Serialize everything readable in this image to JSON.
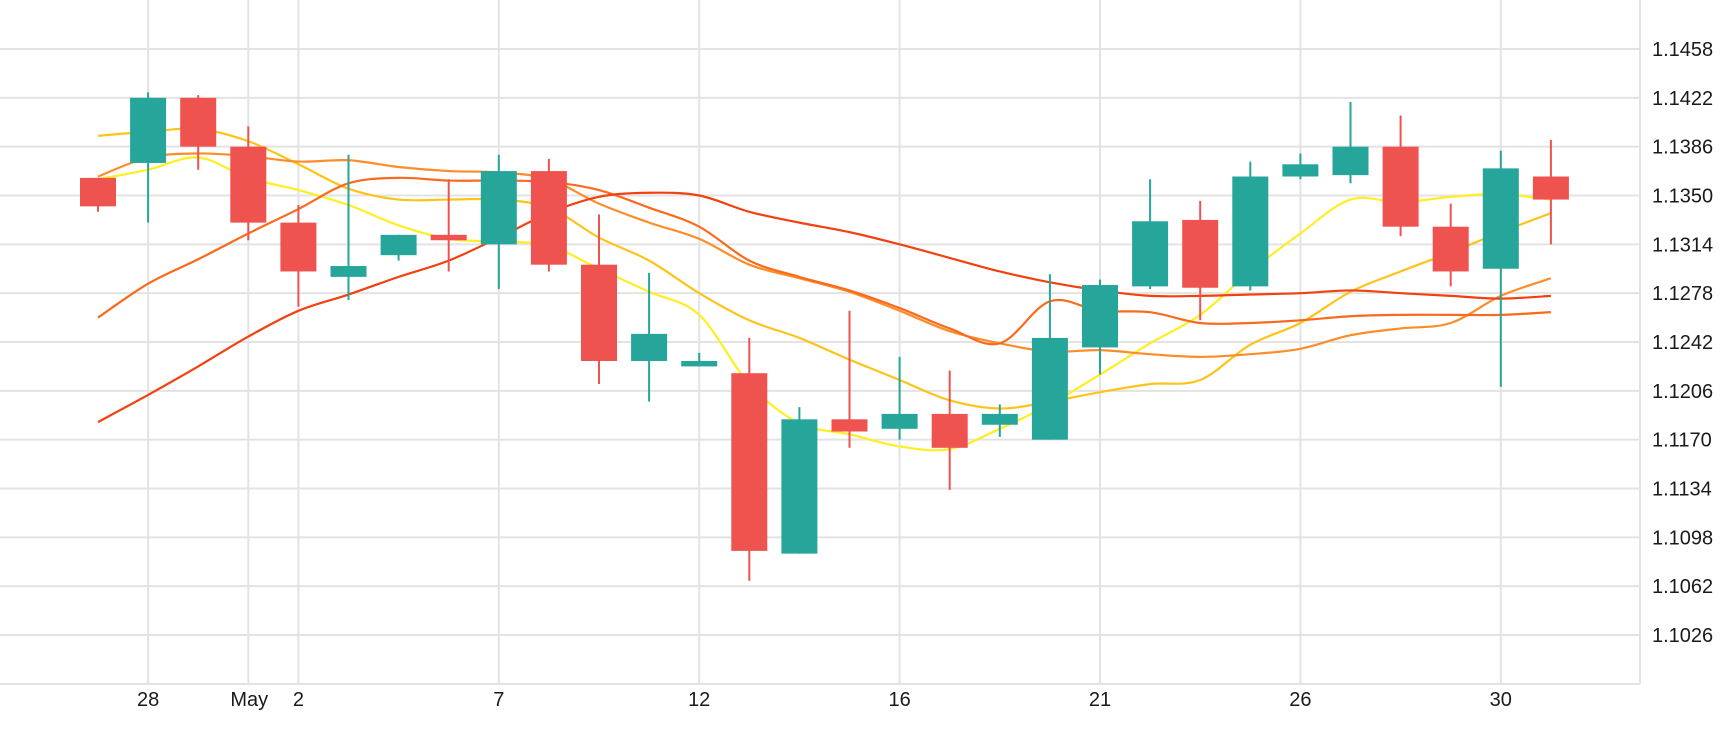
{
  "chart_data": {
    "type": "candlestick",
    "title": "",
    "xlabel": "",
    "ylabel": "",
    "grid": true,
    "ylim": [
      1.099,
      1.1495
    ],
    "y_ticks": [
      "1.1458",
      "1.1422",
      "1.1386",
      "1.1350",
      "1.1314",
      "1.1278",
      "1.1242",
      "1.1206",
      "1.1170",
      "1.1134",
      "1.1098",
      "1.1062",
      "1.1026"
    ],
    "x_ticks": [
      {
        "label": "28",
        "index": 1
      },
      {
        "label": "May",
        "index": 3
      },
      {
        "label": "2",
        "index": 4
      },
      {
        "label": "7",
        "index": 8
      },
      {
        "label": "12",
        "index": 12
      },
      {
        "label": "16",
        "index": 16
      },
      {
        "label": "21",
        "index": 20
      },
      {
        "label": "26",
        "index": 24
      },
      {
        "label": "30",
        "index": 28
      }
    ],
    "x_vertical_grid_indices": [
      1,
      3,
      4,
      8,
      12,
      16,
      20,
      24,
      28
    ],
    "colors": {
      "up": "#26a69a",
      "down": "#ef5350"
    },
    "candles": [
      {
        "open": 1.1363,
        "high": 1.1363,
        "low": 1.1338,
        "close": 1.1342
      },
      {
        "open": 1.1374,
        "high": 1.1426,
        "low": 1.133,
        "close": 1.1422
      },
      {
        "open": 1.1422,
        "high": 1.1424,
        "low": 1.1369,
        "close": 1.1386
      },
      {
        "open": 1.1386,
        "high": 1.1401,
        "low": 1.1317,
        "close": 1.133
      },
      {
        "open": 1.133,
        "high": 1.1343,
        "low": 1.1268,
        "close": 1.1294
      },
      {
        "open": 1.129,
        "high": 1.138,
        "low": 1.1273,
        "close": 1.1298
      },
      {
        "open": 1.1306,
        "high": 1.1321,
        "low": 1.1302,
        "close": 1.1321
      },
      {
        "open": 1.1321,
        "high": 1.1362,
        "low": 1.1294,
        "close": 1.1317
      },
      {
        "open": 1.1314,
        "high": 1.138,
        "low": 1.1281,
        "close": 1.1368
      },
      {
        "open": 1.1368,
        "high": 1.1377,
        "low": 1.1294,
        "close": 1.1299
      },
      {
        "open": 1.1299,
        "high": 1.1336,
        "low": 1.1211,
        "close": 1.1228
      },
      {
        "open": 1.1228,
        "high": 1.1293,
        "low": 1.1198,
        "close": 1.1248
      },
      {
        "open": 1.1224,
        "high": 1.1234,
        "low": 1.1224,
        "close": 1.1228
      },
      {
        "open": 1.1219,
        "high": 1.1245,
        "low": 1.1066,
        "close": 1.1088
      },
      {
        "open": 1.1086,
        "high": 1.1194,
        "low": 1.1086,
        "close": 1.1185
      },
      {
        "open": 1.1185,
        "high": 1.1265,
        "low": 1.1164,
        "close": 1.1176
      },
      {
        "open": 1.1178,
        "high": 1.1231,
        "low": 1.117,
        "close": 1.1189
      },
      {
        "open": 1.1189,
        "high": 1.1221,
        "low": 1.1133,
        "close": 1.1164
      },
      {
        "open": 1.1181,
        "high": 1.1196,
        "low": 1.1172,
        "close": 1.1189
      },
      {
        "open": 1.117,
        "high": 1.1292,
        "low": 1.117,
        "close": 1.1245
      },
      {
        "open": 1.1238,
        "high": 1.1288,
        "low": 1.1218,
        "close": 1.1284
      },
      {
        "open": 1.1283,
        "high": 1.1362,
        "low": 1.1281,
        "close": 1.1331
      },
      {
        "open": 1.1332,
        "high": 1.1346,
        "low": 1.1258,
        "close": 1.1282
      },
      {
        "open": 1.1283,
        "high": 1.1375,
        "low": 1.128,
        "close": 1.1364
      },
      {
        "open": 1.1364,
        "high": 1.1381,
        "low": 1.1362,
        "close": 1.1373
      },
      {
        "open": 1.1365,
        "high": 1.1419,
        "low": 1.1359,
        "close": 1.1386
      },
      {
        "open": 1.1386,
        "high": 1.1409,
        "low": 1.132,
        "close": 1.1327
      },
      {
        "open": 1.1327,
        "high": 1.1344,
        "low": 1.1283,
        "close": 1.1294
      },
      {
        "open": 1.1296,
        "high": 1.1383,
        "low": 1.1209,
        "close": 1.137
      },
      {
        "open": 1.1364,
        "high": 1.1391,
        "low": 1.1314,
        "close": 1.1347
      }
    ],
    "series": [
      {
        "color": "#ffee22",
        "values": [
          [
            0,
            1.1362
          ],
          [
            1,
            1.1369
          ],
          [
            2,
            1.1378
          ],
          [
            3,
            1.1363
          ],
          [
            4,
            1.1354
          ],
          [
            5,
            1.1343
          ],
          [
            6,
            1.1328
          ],
          [
            7,
            1.1318
          ],
          [
            8,
            1.1316
          ],
          [
            9,
            1.1313
          ],
          [
            10,
            1.1296
          ],
          [
            11,
            1.1279
          ],
          [
            12,
            1.1262
          ],
          [
            13,
            1.1211
          ],
          [
            14,
            1.1182
          ],
          [
            15,
            1.1174
          ],
          [
            16,
            1.1165
          ],
          [
            17,
            1.1163
          ],
          [
            18,
            1.1178
          ],
          [
            19,
            1.1196
          ],
          [
            20,
            1.1218
          ],
          [
            21,
            1.1241
          ],
          [
            22,
            1.1262
          ],
          [
            23,
            1.1294
          ],
          [
            24,
            1.1322
          ],
          [
            25,
            1.1347
          ],
          [
            26,
            1.1345
          ],
          [
            27,
            1.1349
          ],
          [
            28,
            1.1351
          ],
          [
            29,
            1.1347
          ]
        ]
      },
      {
        "color": "#fcc419",
        "values": [
          [
            0,
            1.1394
          ],
          [
            1,
            1.1397
          ],
          [
            2,
            1.1399
          ],
          [
            3,
            1.139
          ],
          [
            4,
            1.1373
          ],
          [
            5,
            1.1355
          ],
          [
            6,
            1.1347
          ],
          [
            7,
            1.1347
          ],
          [
            8,
            1.1347
          ],
          [
            9,
            1.1341
          ],
          [
            10,
            1.1319
          ],
          [
            11,
            1.1302
          ],
          [
            12,
            1.1278
          ],
          [
            13,
            1.1258
          ],
          [
            14,
            1.1245
          ],
          [
            15,
            1.1229
          ],
          [
            16,
            1.1214
          ],
          [
            17,
            1.1199
          ],
          [
            18,
            1.1193
          ],
          [
            19,
            1.1198
          ],
          [
            20,
            1.1205
          ],
          [
            21,
            1.1211
          ],
          [
            22,
            1.1214
          ],
          [
            23,
            1.124
          ],
          [
            24,
            1.1256
          ],
          [
            25,
            1.1279
          ],
          [
            26,
            1.1294
          ],
          [
            27,
            1.1308
          ],
          [
            28,
            1.1323
          ],
          [
            29,
            1.1337
          ]
        ]
      },
      {
        "color": "#fd8c2a",
        "values": [
          [
            0,
            1.1364
          ],
          [
            1,
            1.1378
          ],
          [
            2,
            1.1381
          ],
          [
            3,
            1.1379
          ],
          [
            4,
            1.1375
          ],
          [
            5,
            1.1376
          ],
          [
            6,
            1.1371
          ],
          [
            7,
            1.1368
          ],
          [
            8,
            1.1367
          ],
          [
            9,
            1.1362
          ],
          [
            10,
            1.1344
          ],
          [
            11,
            1.133
          ],
          [
            12,
            1.1318
          ],
          [
            13,
            1.1299
          ],
          [
            14,
            1.1289
          ],
          [
            15,
            1.1279
          ],
          [
            16,
            1.1265
          ],
          [
            17,
            1.125
          ],
          [
            18,
            1.1241
          ],
          [
            19,
            1.1235
          ],
          [
            20,
            1.1236
          ],
          [
            21,
            1.1233
          ],
          [
            22,
            1.1231
          ],
          [
            23,
            1.1233
          ],
          [
            24,
            1.1237
          ],
          [
            25,
            1.1247
          ],
          [
            26,
            1.1252
          ],
          [
            27,
            1.1256
          ],
          [
            28,
            1.1276
          ],
          [
            29,
            1.1289
          ]
        ]
      },
      {
        "color": "#fa6a1c",
        "values": [
          [
            0,
            1.126
          ],
          [
            1,
            1.1285
          ],
          [
            2,
            1.1303
          ],
          [
            3,
            1.1322
          ],
          [
            4,
            1.134
          ],
          [
            5,
            1.1359
          ],
          [
            6,
            1.1363
          ],
          [
            7,
            1.1361
          ],
          [
            8,
            1.1361
          ],
          [
            9,
            1.136
          ],
          [
            10,
            1.1354
          ],
          [
            11,
            1.1341
          ],
          [
            12,
            1.1327
          ],
          [
            13,
            1.1302
          ],
          [
            14,
            1.129
          ],
          [
            15,
            1.128
          ],
          [
            16,
            1.1267
          ],
          [
            17,
            1.1252
          ],
          [
            18,
            1.1241
          ],
          [
            19,
            1.1272
          ],
          [
            20,
            1.1265
          ],
          [
            21,
            1.1264
          ],
          [
            22,
            1.1256
          ],
          [
            23,
            1.1256
          ],
          [
            24,
            1.1258
          ],
          [
            25,
            1.1261
          ],
          [
            26,
            1.1262
          ],
          [
            27,
            1.1262
          ],
          [
            28,
            1.1262
          ],
          [
            29,
            1.1264
          ]
        ]
      },
      {
        "color": "#f2410f",
        "values": [
          [
            0,
            1.1183
          ],
          [
            1,
            1.1203
          ],
          [
            2,
            1.1224
          ],
          [
            3,
            1.1246
          ],
          [
            4,
            1.1265
          ],
          [
            5,
            1.1277
          ],
          [
            6,
            1.129
          ],
          [
            7,
            1.1302
          ],
          [
            8,
            1.1319
          ],
          [
            9,
            1.1337
          ],
          [
            10,
            1.1349
          ],
          [
            11,
            1.1352
          ],
          [
            12,
            1.135
          ],
          [
            13,
            1.1338
          ],
          [
            14,
            1.133
          ],
          [
            15,
            1.1323
          ],
          [
            16,
            1.1314
          ],
          [
            17,
            1.1304
          ],
          [
            18,
            1.1294
          ],
          [
            19,
            1.1286
          ],
          [
            20,
            1.128
          ],
          [
            21,
            1.1276
          ],
          [
            22,
            1.1276
          ],
          [
            23,
            1.1277
          ],
          [
            24,
            1.1278
          ],
          [
            25,
            1.128
          ],
          [
            26,
            1.1278
          ],
          [
            27,
            1.1276
          ],
          [
            28,
            1.1274
          ],
          [
            29,
            1.1276
          ]
        ]
      }
    ]
  }
}
